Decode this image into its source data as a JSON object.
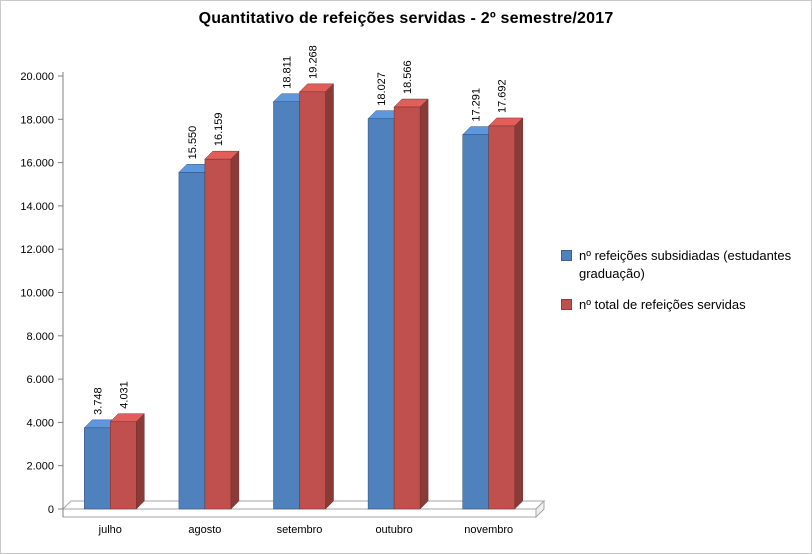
{
  "chart_data": {
    "type": "bar",
    "subtype": "3d-clustered-column",
    "title": "Quantitativo de refeições servidas - 2º semestre/2017",
    "categories": [
      "julho",
      "agosto",
      "setembro",
      "outubro",
      "novembro"
    ],
    "series": [
      {
        "name": "nº refeições subsidiadas (estudantes graduação)",
        "color": "#4f81bd",
        "values": [
          3748,
          15550,
          18811,
          18027,
          17291
        ]
      },
      {
        "name": "nº total de refeições servidas",
        "color": "#c0504d",
        "values": [
          4031,
          16159,
          19268,
          18566,
          17692
        ]
      }
    ],
    "ylim": [
      0,
      20000
    ],
    "ytick_step": 2000,
    "ytick_labels": [
      "0",
      "2.000",
      "4.000",
      "6.000",
      "8.000",
      "10.000",
      "12.000",
      "14.000",
      "16.000",
      "18.000",
      "20.000"
    ],
    "grid": false,
    "legend_position": "right",
    "data_labels": {
      "visible": true,
      "rotation": 90,
      "number_format": "#.###"
    },
    "colors": {
      "axis": "#808080",
      "floor_outline": "#a6a6a6",
      "text": "#000000"
    }
  }
}
